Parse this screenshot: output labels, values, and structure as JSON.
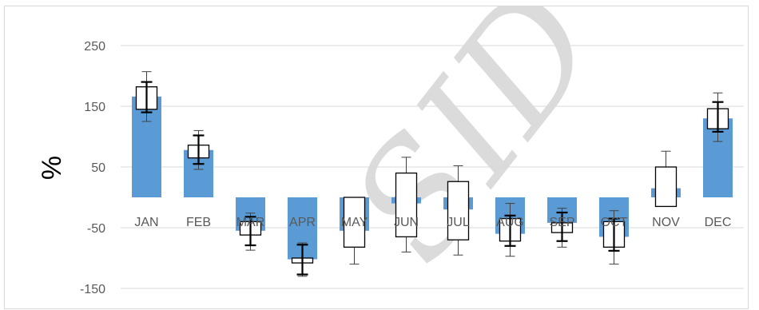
{
  "chart_data": {
    "type": "bar",
    "title": "",
    "xlabel": "",
    "ylabel": "%",
    "ylim": [
      -150,
      280
    ],
    "yticks": [
      -150,
      -50,
      50,
      150,
      250
    ],
    "grid": "horizontal",
    "categories": [
      "JAN",
      "FEB",
      "MAR",
      "APR",
      "MAY",
      "JUN",
      "JUL",
      "AUG",
      "SEP",
      "OCT",
      "NOV",
      "DEC"
    ],
    "bar_color": "#5b9bd5",
    "series": [
      {
        "values": [
          166,
          78,
          -55,
          -102,
          -55,
          -10,
          -20,
          -60,
          -42,
          -65,
          15,
          130
        ]
      }
    ],
    "box_series": [
      {
        "category": "JAN",
        "whisker_low": 125,
        "q1": 145,
        "q3": 182,
        "whisker_high": 207,
        "error_low": 140,
        "error_high": 190
      },
      {
        "category": "FEB",
        "whisker_low": 46,
        "q1": 65,
        "q3": 86,
        "whisker_high": 110,
        "error_low": 55,
        "error_high": 102
      },
      {
        "category": "MAR",
        "whisker_low": -87,
        "q1": -62,
        "q3": -40,
        "whisker_high": -26,
        "error_low": -79,
        "error_high": -32
      },
      {
        "category": "APR",
        "whisker_low": -130,
        "q1": -108,
        "q3": -100,
        "whisker_high": -75,
        "error_low": -127,
        "error_high": -78
      },
      {
        "category": "MAY",
        "whisker_low": -110,
        "q1": -82,
        "q3": 0,
        "whisker_high": 0,
        "error_low": null,
        "error_high": null
      },
      {
        "category": "JUN",
        "whisker_low": -90,
        "q1": -65,
        "q3": 40,
        "whisker_high": 66,
        "error_low": null,
        "error_high": null
      },
      {
        "category": "JUL",
        "whisker_low": -95,
        "q1": -70,
        "q3": 26,
        "whisker_high": 52,
        "error_low": null,
        "error_high": null
      },
      {
        "category": "AUG",
        "whisker_low": -97,
        "q1": -72,
        "q3": -35,
        "whisker_high": -10,
        "error_low": -80,
        "error_high": -30
      },
      {
        "category": "SEP",
        "whisker_low": -82,
        "q1": -58,
        "q3": -42,
        "whisker_high": -18,
        "error_low": -72,
        "error_high": -25
      },
      {
        "category": "OCT",
        "whisker_low": -110,
        "q1": -82,
        "q3": -40,
        "whisker_high": -22,
        "error_low": -88,
        "error_high": -35
      },
      {
        "category": "NOV",
        "whisker_low": -15,
        "q1": -15,
        "q3": 50,
        "whisker_high": 76,
        "error_low": null,
        "error_high": null
      },
      {
        "category": "DEC",
        "whisker_low": 92,
        "q1": 113,
        "q3": 146,
        "whisker_high": 172,
        "error_low": 108,
        "error_high": 157
      }
    ]
  },
  "watermark": {
    "text": "SID"
  }
}
